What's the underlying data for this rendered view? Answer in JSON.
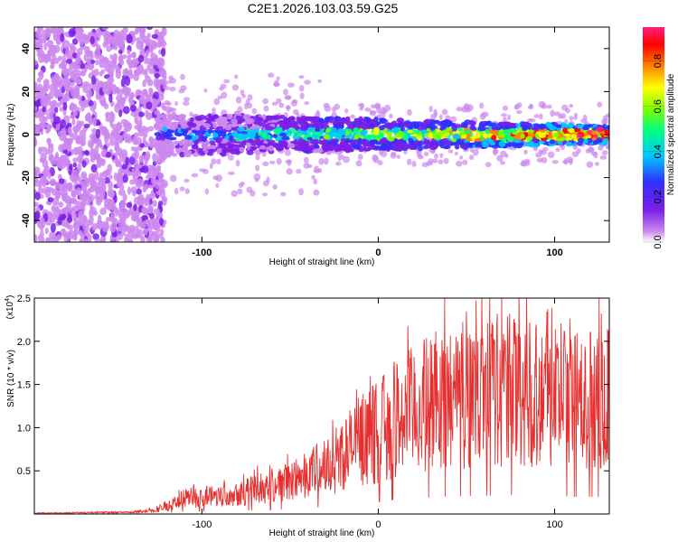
{
  "title": "C2E1.2026.103.03.59.G25",
  "chart_data": [
    {
      "type": "heatmap",
      "xlabel": "Height of straight line (km)",
      "ylabel": "Frequency (Hz)",
      "xlim": [
        -195,
        131
      ],
      "ylim": [
        -50,
        50
      ],
      "xticks": [
        -100,
        0,
        100
      ],
      "yticks": [
        -40,
        -20,
        0,
        20,
        40
      ],
      "xtick_labels": [
        "-100",
        "0",
        "100"
      ],
      "ytick_labels": [
        "-40",
        "-20",
        "0",
        "20",
        "40"
      ],
      "colorbar": {
        "label": "Normalized spectral amplitude",
        "range": [
          0,
          0.95
        ],
        "ticks": [
          0,
          0.2,
          0.4,
          0.6,
          0.8
        ],
        "tick_labels": [
          "0.0",
          "0.2",
          "0.4",
          "0.6",
          "0.8"
        ],
        "colors": [
          "#ffffff",
          "#cc88ee",
          "#7a1fe8",
          "#3030ff",
          "#00c8ff",
          "#00ff80",
          "#80ff00",
          "#ffff00",
          "#ff8000",
          "#ff0000",
          "#ff2080"
        ]
      },
      "regions": [
        {
          "name": "noise",
          "x": [
            -195,
            -125
          ],
          "y": [
            -50,
            50
          ],
          "amplitude": 0.08
        },
        {
          "name": "signal-band",
          "x": [
            -125,
            131
          ],
          "center_y": 0,
          "half_width_hz": 10,
          "amplitude_start": 0.3,
          "amplitude_end": 0.9
        }
      ]
    },
    {
      "type": "line",
      "xlabel": "Height of straight line (km)",
      "ylabel": "SNR (10 * v/v)",
      "y_multiplier_label": "(x10",
      "y_multiplier_exp": "4",
      "y_multiplier_close": ")",
      "xlim": [
        -195,
        131
      ],
      "ylim": [
        0,
        2.5
      ],
      "xticks": [
        -100,
        0,
        100
      ],
      "xtick_labels": [
        "-100",
        "0",
        "100"
      ],
      "yticks": [
        0.5,
        1.0,
        1.5,
        2.0,
        2.5
      ],
      "ytick_labels": [
        "0.5",
        "1.0",
        "1.5",
        "2.0",
        "2.5"
      ],
      "series": [
        {
          "name": "SNR",
          "color": "#e63030",
          "envelope": {
            "x": [
              -195,
              -140,
              -125,
              -110,
              -90,
              -70,
              -50,
              -30,
              -20,
              -10,
              0,
              10,
              25,
              40,
              60,
              80,
              100,
              115,
              131
            ],
            "y": [
              0.01,
              0.02,
              0.05,
              0.18,
              0.22,
              0.28,
              0.38,
              0.55,
              0.7,
              0.85,
              0.95,
              1.1,
              1.25,
              1.35,
              1.42,
              1.45,
              1.4,
              1.3,
              1.35
            ]
          },
          "noise_fraction": 0.45
        }
      ]
    }
  ]
}
